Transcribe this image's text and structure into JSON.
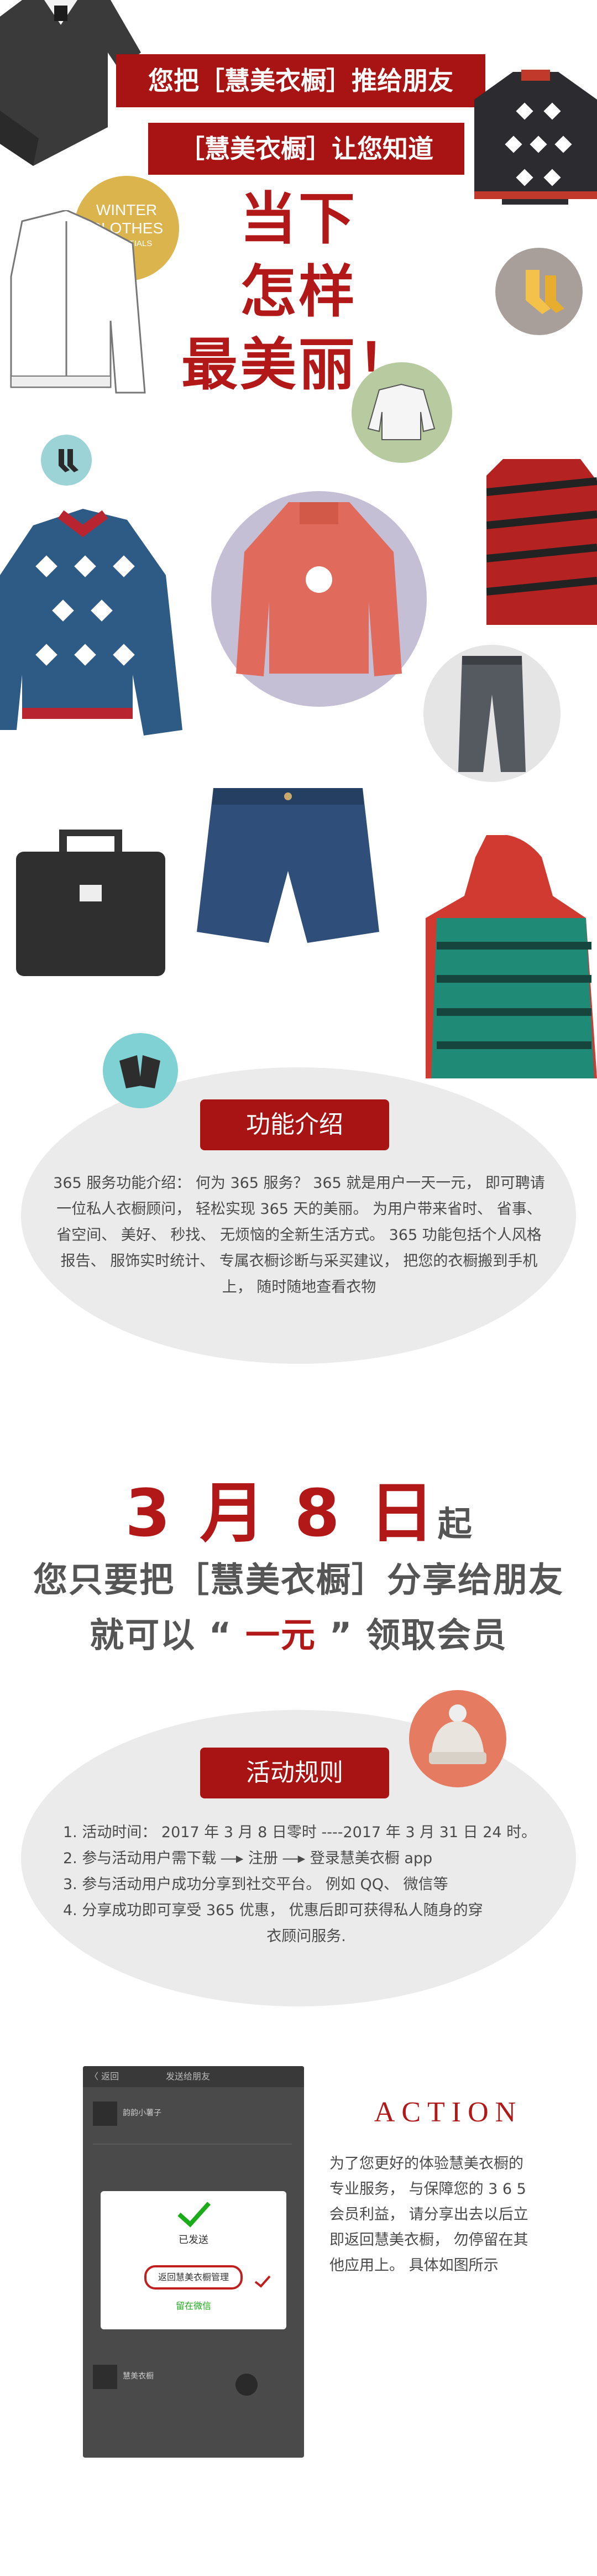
{
  "header": {
    "banner1": "您把［慧美衣橱］推给朋友",
    "banner2": "［慧美衣橱］让您知道",
    "headline_line1": "当下",
    "headline_line2": "怎样",
    "headline_line3": "最美丽！",
    "badge_line1": "WINTER",
    "badge_line2": "CLOTHES",
    "badge_line3": "ESSENTIALS"
  },
  "features": {
    "title": "功能介绍",
    "body": "365 服务功能介绍： 何为 365 服务？ 365 就是用户一天一元， 即可聘请一位私人衣橱顾问， 轻松实现 365 天的美丽。 为用户带来省时、 省事、 省空间、 美好、 秒找、 无烦恼的全新生活方式。 365 功能包括个人风格报告、 服饰实时统计、 专属衣橱诊断与采买建议， 把您的衣橱搬到手机上， 随时随地查看衣物"
  },
  "promo": {
    "date_prefix": "3 月 8 日",
    "date_suffix": "起",
    "line1": "您只要把［慧美衣橱］分享给朋友",
    "line2_a": "就可以 “ ",
    "line2_highlight": "一元",
    "line2_b": " ” 领取会员"
  },
  "rules": {
    "title": "活动规则",
    "items": [
      "1. 活动时间： 2017 年 3 月 8 日零时 ----2017 年 3 月 31 日 24 时。",
      "2. 参与活动用户需下载 ―▸ 注册 ―▸ 登录慧美衣橱 app",
      "3. 参与活动用户成功分享到社交平台。 例如 QQ、 微信等",
      "4. 分享成功即可享受 365 优惠， 优惠后即可获得私人随身的穿",
      "衣顾问服务."
    ]
  },
  "action": {
    "title": "ACTION",
    "lines": [
      "为了您更好的体验慧美衣橱的",
      "专业服务， 与保障您的 3 6 5",
      "会员利益， 请分享出去以后立",
      "即返回慧美衣橱， 勿停留在其",
      "他应用上。 具体如图所示"
    ]
  },
  "phone": {
    "top_left": "〈 返回",
    "top_title": "发送给朋友",
    "sent_label": "已发送",
    "return_button": "返回慧美衣橱管理",
    "stay_link": "留在微信",
    "chat_name": "韵韵小薯子",
    "chat_name2": "慧美衣橱"
  },
  "colors": {
    "brand_red": "#a81313",
    "headline_red": "#b21818",
    "ellipse_grey": "#ebebeb",
    "wechat_green": "#1aad19"
  }
}
